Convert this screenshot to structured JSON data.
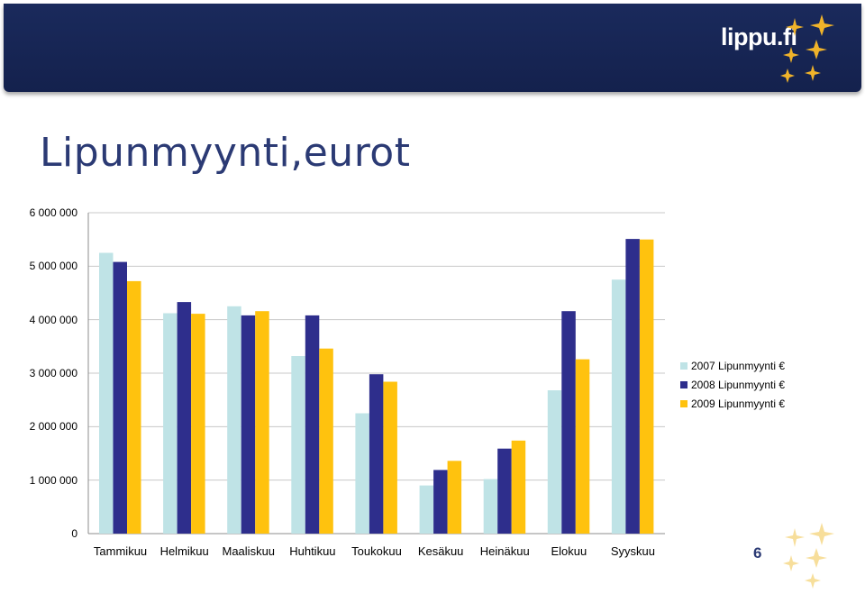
{
  "header": {
    "brand": "lippu.fi"
  },
  "slide": {
    "title": "Lipunmyynti,eurot",
    "page_number": "6"
  },
  "colors": {
    "banner": "#1a2a5c",
    "series": [
      "#bfe3e6",
      "#2e2e8c",
      "#ffc20e"
    ],
    "grid": "#c8c8c8"
  },
  "icons": {
    "logo_stars": "star-cluster-icon"
  },
  "chart_data": {
    "type": "bar",
    "title": "",
    "xlabel": "",
    "ylabel": "",
    "ylim": [
      0,
      6000000
    ],
    "y_ticks": [
      "0",
      "1 000 000",
      "2 000 000",
      "3 000 000",
      "4 000 000",
      "5 000 000",
      "6 000 000"
    ],
    "grid": true,
    "legend_position": "right",
    "categories": [
      "Tammikuu",
      "Helmikuu",
      "Maaliskuu",
      "Huhtikuu",
      "Toukokuu",
      "Kesäkuu",
      "Heinäkuu",
      "Elokuu",
      "Syyskuu"
    ],
    "series": [
      {
        "name": "2007 Lipunmyynti €",
        "values": [
          5250000,
          4120000,
          4250000,
          3320000,
          2250000,
          900000,
          1020000,
          2680000,
          4750000
        ]
      },
      {
        "name": "2008 Lipunmyynti €",
        "values": [
          5080000,
          4330000,
          4080000,
          4080000,
          2980000,
          1190000,
          1590000,
          4160000,
          5510000
        ]
      },
      {
        "name": "2009 Lipunmyynti €",
        "values": [
          4720000,
          4110000,
          4160000,
          3460000,
          2840000,
          1360000,
          1740000,
          3260000,
          5500000
        ]
      }
    ]
  }
}
